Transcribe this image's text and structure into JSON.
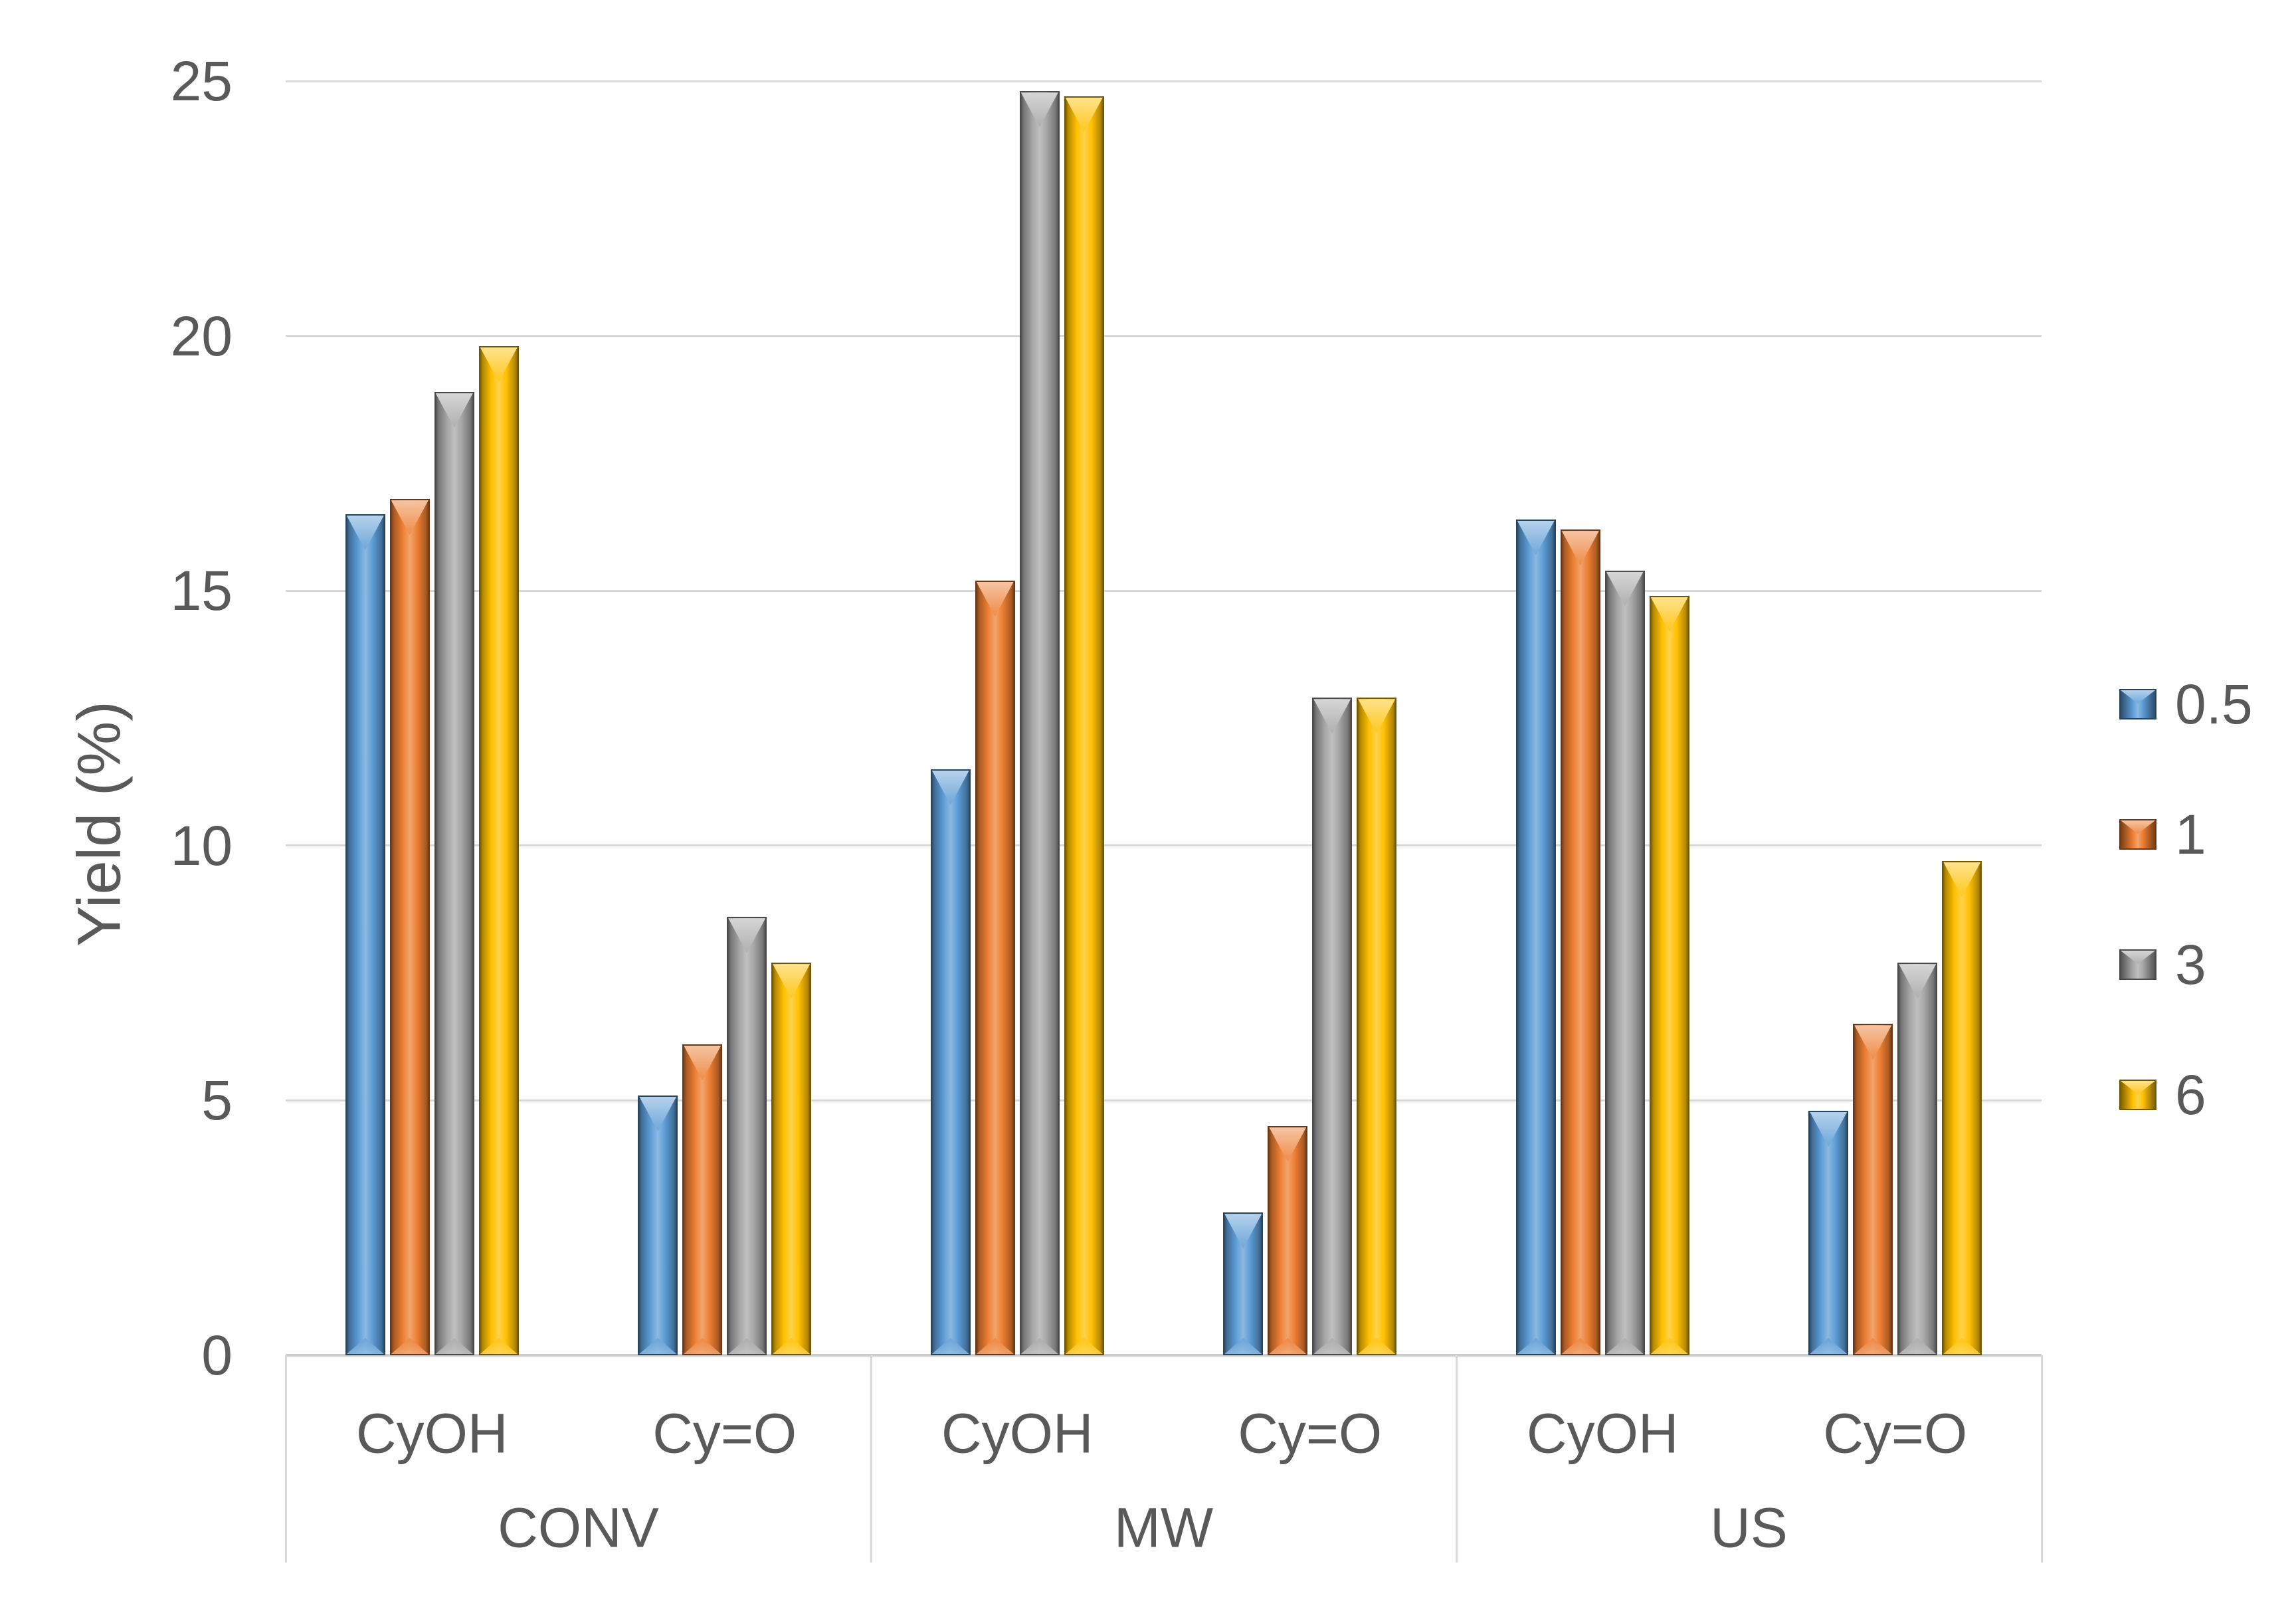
{
  "chart_data": {
    "type": "bar",
    "title": "",
    "ylabel": "Yield (%)",
    "xlabel": "",
    "ylim": [
      0,
      25
    ],
    "yticks": [
      0,
      5,
      10,
      15,
      20,
      25
    ],
    "grid": true,
    "legend_position": "right",
    "bar_style": "3d-bevel",
    "groups": [
      "CONV",
      "MW",
      "US"
    ],
    "categories": [
      "CyOH",
      "Cy=O",
      "CyOH",
      "Cy=O",
      "CyOH",
      "Cy=O"
    ],
    "series": [
      {
        "name": "0.5",
        "color": "#5b9bd5",
        "values": [
          16.5,
          5.1,
          11.5,
          2.8,
          16.4,
          4.8
        ]
      },
      {
        "name": "1",
        "color": "#ed7d31",
        "values": [
          16.8,
          6.1,
          15.2,
          4.5,
          16.2,
          6.5
        ]
      },
      {
        "name": "3",
        "color": "#a5a5a5",
        "values": [
          18.9,
          8.6,
          24.8,
          12.9,
          15.4,
          7.7
        ]
      },
      {
        "name": "6",
        "color": "#ffc000",
        "values": [
          19.8,
          7.7,
          24.7,
          12.9,
          14.9,
          9.7
        ]
      }
    ],
    "colors": {
      "gridline": "#d9d9d9",
      "axis_line": "#cfcfcf",
      "text": "#595959",
      "background": "#ffffff"
    }
  }
}
